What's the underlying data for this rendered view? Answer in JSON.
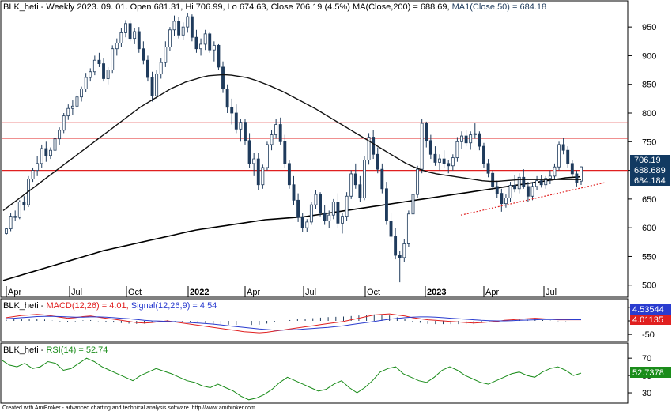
{
  "panels": {
    "price": {
      "title_symbol": "BLK_heti",
      "title_info": " - Weekly 2023. 09. 01. Open 681.31, Hi 706.99, Lo 674.63, Close 706.19 (4.5%) ",
      "ma200_text": "MA(Close,200) = 688.69,",
      "ma50_text": "MA1(Close,50) = 684.18"
    },
    "macd": {
      "title_symbol": "BLK_heti",
      "title_sep": " - ",
      "macd_text": "MACD(12,26) = 4.01,",
      "signal_text": "Signal(12,26,9) = 4.54",
      "signal_badge": "4.53544",
      "macd_badge": "4.01135"
    },
    "rsi": {
      "title_symbol": "BLK_heti",
      "title_sep": " - ",
      "rsi_text": "RSI(14) = 52.74",
      "rsi_badge": "52.7378"
    }
  },
  "footer": "Created with AmiBroker - advanced charting and technical analysis software. http://www.amibroker.com",
  "colors": {
    "up": "#ffffff",
    "down": "#1f3b5c",
    "hline": "#e02020",
    "trend": "#e02020",
    "ma": "#000000",
    "macd": "#e02020",
    "signal": "#2a3ccf",
    "rsi": "#1a8c1a",
    "badge_blue": "#123a62"
  },
  "chart_data": [
    {
      "type": "candlestick",
      "title": "BLK_heti - Weekly 2023. 09. 01.",
      "x_ticks": [
        "Apr",
        "Jul",
        "Oct",
        "2022",
        "Apr",
        "Jul",
        "Oct",
        "2023",
        "Apr",
        "Jul"
      ],
      "y_ticks": [
        500,
        550,
        600,
        650,
        700,
        750,
        800,
        850,
        900,
        950
      ],
      "ylim": [
        490,
        975
      ],
      "horizontal_lines": [
        783,
        756,
        700
      ],
      "price_badges": [
        "706.19",
        "688.689",
        "684.184"
      ],
      "last_candle": {
        "open": 681.31,
        "high": 706.99,
        "low": 674.63,
        "close": 706.19
      },
      "trendline": {
        "start": 622,
        "end": 679
      },
      "candles": [
        [
          590,
          600,
          588,
          598
        ],
        [
          598,
          625,
          594,
          620
        ],
        [
          620,
          630,
          612,
          618
        ],
        [
          618,
          648,
          615,
          645
        ],
        [
          645,
          655,
          630,
          640
        ],
        [
          640,
          690,
          636,
          685
        ],
        [
          685,
          705,
          680,
          700
        ],
        [
          700,
          725,
          690,
          712
        ],
        [
          712,
          745,
          705,
          738
        ],
        [
          738,
          750,
          715,
          726
        ],
        [
          726,
          740,
          720,
          735
        ],
        [
          735,
          760,
          730,
          755
        ],
        [
          755,
          775,
          745,
          770
        ],
        [
          770,
          800,
          765,
          795
        ],
        [
          795,
          815,
          788,
          808
        ],
        [
          808,
          822,
          796,
          812
        ],
        [
          812,
          835,
          805,
          828
        ],
        [
          828,
          846,
          820,
          842
        ],
        [
          842,
          870,
          836,
          862
        ],
        [
          862,
          878,
          855,
          872
        ],
        [
          872,
          900,
          866,
          892
        ],
        [
          892,
          905,
          880,
          886
        ],
        [
          886,
          895,
          855,
          860
        ],
        [
          860,
          880,
          850,
          875
        ],
        [
          875,
          918,
          870,
          912
        ],
        [
          912,
          930,
          900,
          922
        ],
        [
          922,
          948,
          915,
          940
        ],
        [
          940,
          962,
          932,
          956
        ],
        [
          956,
          962,
          925,
          930
        ],
        [
          930,
          948,
          920,
          942
        ],
        [
          942,
          950,
          905,
          912
        ],
        [
          912,
          925,
          885,
          892
        ],
        [
          892,
          900,
          855,
          862
        ],
        [
          862,
          872,
          820,
          830
        ],
        [
          830,
          875,
          825,
          868
        ],
        [
          868,
          895,
          860,
          888
        ],
        [
          888,
          925,
          880,
          915
        ],
        [
          915,
          950,
          908,
          945
        ],
        [
          945,
          970,
          935,
          960
        ],
        [
          960,
          968,
          930,
          936
        ],
        [
          936,
          958,
          928,
          950
        ],
        [
          950,
          975,
          940,
          968
        ],
        [
          968,
          972,
          925,
          932
        ],
        [
          932,
          945,
          905,
          912
        ],
        [
          912,
          930,
          900,
          920
        ],
        [
          920,
          945,
          910,
          938
        ],
        [
          938,
          942,
          905,
          910
        ],
        [
          910,
          925,
          890,
          918
        ],
        [
          918,
          920,
          875,
          880
        ],
        [
          880,
          890,
          835,
          842
        ],
        [
          842,
          850,
          800,
          810
        ],
        [
          810,
          825,
          780,
          800
        ],
        [
          800,
          815,
          765,
          772
        ],
        [
          772,
          790,
          750,
          784
        ],
        [
          784,
          790,
          745,
          752
        ],
        [
          752,
          765,
          705,
          712
        ],
        [
          712,
          730,
          690,
          720
        ],
        [
          720,
          730,
          665,
          675
        ],
        [
          675,
          710,
          668,
          705
        ],
        [
          705,
          750,
          700,
          745
        ],
        [
          745,
          770,
          735,
          762
        ],
        [
          762,
          790,
          755,
          780
        ],
        [
          780,
          792,
          745,
          750
        ],
        [
          750,
          762,
          705,
          712
        ],
        [
          712,
          718,
          668,
          675
        ],
        [
          675,
          690,
          640,
          648
        ],
        [
          648,
          660,
          610,
          618
        ],
        [
          618,
          625,
          592,
          600
        ],
        [
          600,
          615,
          592,
          610
        ],
        [
          610,
          645,
          605,
          640
        ],
        [
          640,
          665,
          632,
          658
        ],
        [
          658,
          662,
          620,
          626
        ],
        [
          626,
          640,
          605,
          612
        ],
        [
          612,
          630,
          600,
          622
        ],
        [
          622,
          650,
          615,
          645
        ],
        [
          645,
          660,
          600,
          608
        ],
        [
          608,
          625,
          590,
          620
        ],
        [
          620,
          662,
          612,
          655
        ],
        [
          655,
          700,
          650,
          694
        ],
        [
          694,
          712,
          668,
          675
        ],
        [
          675,
          690,
          645,
          652
        ],
        [
          652,
          725,
          648,
          718
        ],
        [
          718,
          765,
          710,
          758
        ],
        [
          758,
          770,
          720,
          728
        ],
        [
          728,
          740,
          695,
          702
        ],
        [
          702,
          712,
          660,
          668
        ],
        [
          668,
          680,
          605,
          612
        ],
        [
          612,
          625,
          575,
          585
        ],
        [
          585,
          600,
          545,
          552
        ],
        [
          552,
          560,
          505,
          548
        ],
        [
          548,
          580,
          540,
          572
        ],
        [
          572,
          630,
          566,
          624
        ],
        [
          624,
          665,
          616,
          658
        ],
        [
          658,
          708,
          652,
          702
        ],
        [
          702,
          790,
          695,
          782
        ],
        [
          782,
          785,
          740,
          752
        ],
        [
          752,
          762,
          720,
          728
        ],
        [
          728,
          742,
          708,
          714
        ],
        [
          714,
          728,
          700,
          720
        ],
        [
          720,
          735,
          705,
          712
        ],
        [
          712,
          718,
          695,
          708
        ],
        [
          708,
          728,
          700,
          722
        ],
        [
          722,
          758,
          715,
          750
        ],
        [
          750,
          768,
          738,
          760
        ],
        [
          760,
          770,
          742,
          748
        ],
        [
          748,
          768,
          736,
          762
        ],
        [
          762,
          782,
          755,
          764
        ],
        [
          764,
          768,
          735,
          742
        ],
        [
          742,
          748,
          705,
          712
        ],
        [
          712,
          720,
          688,
          695
        ],
        [
          695,
          700,
          665,
          672
        ],
        [
          672,
          682,
          652,
          660
        ],
        [
          660,
          668,
          628,
          642
        ],
        [
          642,
          658,
          635,
          652
        ],
        [
          652,
          680,
          645,
          674
        ],
        [
          674,
          692,
          662,
          668
        ],
        [
          668,
          695,
          660,
          688
        ],
        [
          688,
          702,
          668,
          672
        ],
        [
          672,
          680,
          645,
          655
        ],
        [
          655,
          680,
          648,
          672
        ],
        [
          672,
          690,
          665,
          682
        ],
        [
          682,
          692,
          670,
          675
        ],
        [
          675,
          690,
          668,
          686
        ],
        [
          686,
          700,
          676,
          690
        ],
        [
          690,
          712,
          684,
          706
        ],
        [
          706,
          750,
          700,
          745
        ],
        [
          745,
          756,
          728,
          735
        ],
        [
          735,
          742,
          705,
          712
        ],
        [
          712,
          718,
          688,
          694
        ],
        [
          694,
          700,
          672,
          678
        ],
        [
          681.31,
          706.99,
          674.63,
          706.19
        ]
      ],
      "ma200": [
        508,
        512,
        516,
        520,
        524,
        528,
        532,
        536,
        540,
        544,
        548,
        552,
        556,
        560,
        563,
        566,
        569,
        572,
        575,
        578,
        581,
        584,
        587,
        590,
        593,
        596,
        598,
        600,
        602,
        604,
        606,
        608,
        610,
        612,
        614,
        615,
        616,
        617,
        618,
        619,
        621,
        623,
        625,
        627,
        629,
        631,
        633,
        635,
        637,
        639,
        641,
        643,
        645,
        647,
        649,
        651,
        653,
        655,
        657,
        659,
        661,
        663,
        665,
        667,
        669,
        671,
        673,
        675,
        677,
        679,
        681,
        683,
        685,
        687,
        688,
        689
      ],
      "ma50": [
        630,
        640,
        650,
        660,
        670,
        680,
        690,
        700,
        710,
        720,
        730,
        740,
        750,
        760,
        770,
        780,
        790,
        800,
        810,
        818,
        826,
        834,
        842,
        848,
        854,
        858,
        862,
        865,
        866,
        867,
        866,
        864,
        862,
        858,
        853,
        848,
        842,
        836,
        829,
        822,
        815,
        808,
        800,
        792,
        784,
        776,
        768,
        760,
        752,
        744,
        736,
        728,
        720,
        712,
        706,
        701,
        697,
        694,
        692,
        690,
        688,
        686,
        684,
        682,
        681,
        681,
        682,
        683,
        684,
        684,
        684,
        684,
        684,
        684,
        684,
        684,
        684
      ]
    },
    {
      "type": "line",
      "title": "BLK_heti - MACD(12,26) = 4.01, Signal(12,26,9) = 4.54",
      "y_ticks": [
        50,
        0,
        -50
      ],
      "ylim": [
        -70,
        70
      ],
      "series": [
        {
          "name": "MACD(12,26)",
          "values": [
            12,
            16,
            20,
            22,
            24,
            22,
            18,
            14,
            10,
            12,
            16,
            18,
            14,
            10,
            6,
            2,
            -2,
            -6,
            -8,
            -6,
            -3,
            0,
            -4,
            -8,
            -12,
            -16,
            -20,
            -24,
            -28,
            -32,
            -36,
            -40,
            -42,
            -44,
            -42,
            -38,
            -34,
            -30,
            -26,
            -22,
            -18,
            -14,
            -10,
            -6,
            -2,
            4,
            10,
            16,
            22,
            24,
            26,
            22,
            18,
            12,
            8,
            4,
            2,
            0,
            -2,
            -4,
            -6,
            -8,
            -6,
            -4,
            -2,
            2,
            4,
            6,
            8,
            10,
            8,
            6,
            4,
            4,
            4,
            4
          ]
        },
        {
          "name": "Signal(12,26,9)",
          "values": [
            8,
            10,
            12,
            14,
            16,
            17,
            17,
            16,
            15,
            14,
            14,
            15,
            15,
            14,
            12,
            10,
            8,
            5,
            2,
            0,
            -1,
            -2,
            -3,
            -4,
            -6,
            -8,
            -10,
            -12,
            -15,
            -18,
            -21,
            -24,
            -27,
            -30,
            -32,
            -34,
            -34,
            -33,
            -32,
            -30,
            -28,
            -26,
            -24,
            -21,
            -18,
            -14,
            -10,
            -6,
            -2,
            2,
            6,
            9,
            12,
            14,
            15,
            15,
            14,
            12,
            10,
            8,
            6,
            4,
            2,
            1,
            0,
            0,
            1,
            2,
            3,
            4,
            5,
            5,
            5,
            5,
            4.5,
            4.5
          ]
        }
      ],
      "histogram": [
        4,
        6,
        8,
        8,
        8,
        5,
        1,
        -2,
        -5,
        -2,
        2,
        3,
        -1,
        -4,
        -6,
        -8,
        -10,
        -11,
        -10,
        -6,
        -2,
        2,
        -1,
        -4,
        -6,
        -8,
        -10,
        -12,
        -13,
        -14,
        -15,
        -16,
        -15,
        -14,
        -10,
        -4,
        0,
        3,
        6,
        8,
        10,
        12,
        14,
        15,
        16,
        18,
        20,
        22,
        24,
        22,
        20,
        13,
        6,
        -2,
        -7,
        -11,
        -12,
        -12,
        -12,
        -12,
        -12,
        -12,
        -8,
        -5,
        -2,
        2,
        3,
        4,
        5,
        6,
        3,
        1,
        -1,
        -1,
        0,
        0
      ]
    },
    {
      "type": "line",
      "title": "BLK_heti - RSI(14) = 52.74",
      "y_ticks": [
        70,
        50,
        30
      ],
      "ylim": [
        20,
        82
      ],
      "series": [
        {
          "name": "RSI(14)",
          "values": [
            68,
            62,
            60,
            64,
            58,
            60,
            66,
            64,
            56,
            58,
            64,
            70,
            66,
            60,
            56,
            52,
            48,
            44,
            50,
            54,
            58,
            55,
            52,
            48,
            44,
            42,
            38,
            36,
            40,
            36,
            32,
            26,
            22,
            24,
            28,
            34,
            42,
            48,
            44,
            40,
            36,
            32,
            34,
            40,
            44,
            36,
            30,
            36,
            44,
            54,
            58,
            60,
            52,
            48,
            44,
            42,
            48,
            56,
            60,
            56,
            50,
            46,
            42,
            40,
            44,
            48,
            52,
            54,
            50,
            48,
            54,
            58,
            60,
            56,
            50,
            52.74
          ]
        }
      ]
    }
  ]
}
